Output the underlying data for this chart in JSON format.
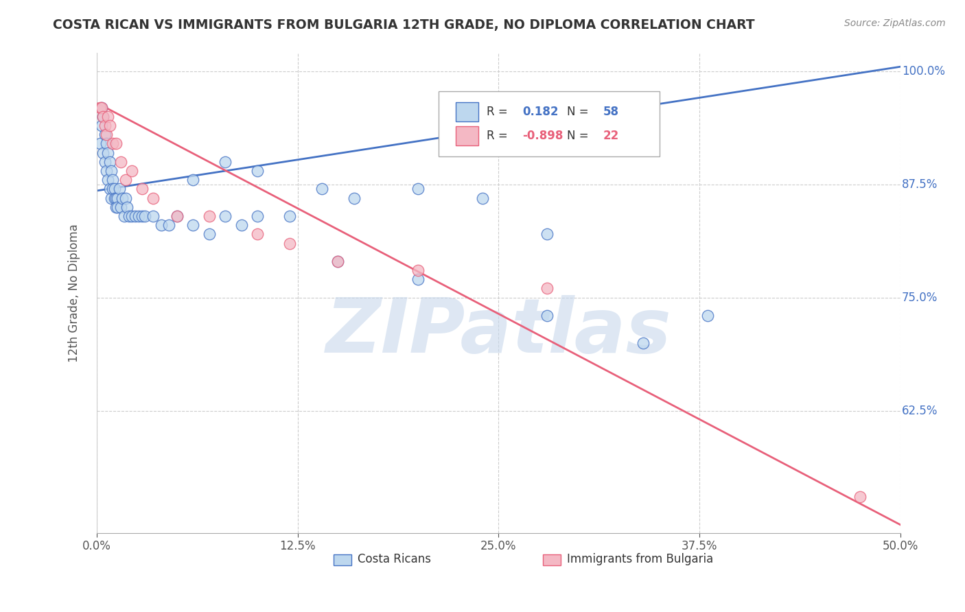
{
  "title": "COSTA RICAN VS IMMIGRANTS FROM BULGARIA 12TH GRADE, NO DIPLOMA CORRELATION CHART",
  "source": "Source: ZipAtlas.com",
  "ylabel": "12th Grade, No Diploma",
  "xlim": [
    0.0,
    0.5
  ],
  "ylim": [
    0.49,
    1.02
  ],
  "xtick_labels": [
    "0.0%",
    "12.5%",
    "25.0%",
    "37.5%",
    "50.0%"
  ],
  "xtick_vals": [
    0.0,
    0.125,
    0.25,
    0.375,
    0.5
  ],
  "ytick_labels": [
    "62.5%",
    "75.0%",
    "87.5%",
    "100.0%"
  ],
  "ytick_vals": [
    0.625,
    0.75,
    0.875,
    1.0
  ],
  "costa_rican_R": 0.182,
  "costa_rican_N": 58,
  "bulgaria_R": -0.898,
  "bulgaria_N": 22,
  "blue_color": "#4472C4",
  "pink_color": "#E8607A",
  "blue_fill": "#BDD7EE",
  "pink_fill": "#F4B8C4",
  "watermark": "ZIPatlas",
  "watermark_color": "#C8D8EC",
  "trend_blue_x0": 0.0,
  "trend_blue_y0": 0.868,
  "trend_blue_x1": 0.5,
  "trend_blue_y1": 1.005,
  "trend_pink_x0": 0.0,
  "trend_pink_y0": 0.965,
  "trend_pink_x1": 0.5,
  "trend_pink_y1": 0.499,
  "costa_ricans_x": [
    0.002,
    0.003,
    0.003,
    0.004,
    0.004,
    0.005,
    0.005,
    0.006,
    0.006,
    0.007,
    0.007,
    0.008,
    0.008,
    0.009,
    0.009,
    0.01,
    0.01,
    0.011,
    0.011,
    0.012,
    0.012,
    0.013,
    0.013,
    0.014,
    0.015,
    0.016,
    0.017,
    0.018,
    0.019,
    0.02,
    0.022,
    0.024,
    0.026,
    0.028,
    0.03,
    0.035,
    0.04,
    0.045,
    0.05,
    0.06,
    0.07,
    0.08,
    0.09,
    0.1,
    0.12,
    0.14,
    0.16,
    0.2,
    0.24,
    0.28,
    0.06,
    0.08,
    0.1,
    0.15,
    0.2,
    0.28,
    0.34,
    0.38
  ],
  "costa_ricans_y": [
    0.92,
    0.94,
    0.96,
    0.91,
    0.95,
    0.9,
    0.93,
    0.89,
    0.92,
    0.88,
    0.91,
    0.87,
    0.9,
    0.86,
    0.89,
    0.88,
    0.87,
    0.87,
    0.86,
    0.86,
    0.85,
    0.86,
    0.85,
    0.87,
    0.85,
    0.86,
    0.84,
    0.86,
    0.85,
    0.84,
    0.84,
    0.84,
    0.84,
    0.84,
    0.84,
    0.84,
    0.83,
    0.83,
    0.84,
    0.83,
    0.82,
    0.84,
    0.83,
    0.84,
    0.84,
    0.87,
    0.86,
    0.87,
    0.86,
    0.82,
    0.88,
    0.9,
    0.89,
    0.79,
    0.77,
    0.73,
    0.7,
    0.73
  ],
  "bulgaria_x": [
    0.002,
    0.003,
    0.004,
    0.005,
    0.006,
    0.007,
    0.008,
    0.01,
    0.012,
    0.015,
    0.018,
    0.022,
    0.028,
    0.035,
    0.05,
    0.07,
    0.1,
    0.12,
    0.15,
    0.2,
    0.28,
    0.475
  ],
  "bulgaria_y": [
    0.96,
    0.96,
    0.95,
    0.94,
    0.93,
    0.95,
    0.94,
    0.92,
    0.92,
    0.9,
    0.88,
    0.89,
    0.87,
    0.86,
    0.84,
    0.84,
    0.82,
    0.81,
    0.79,
    0.78,
    0.76,
    0.53
  ]
}
